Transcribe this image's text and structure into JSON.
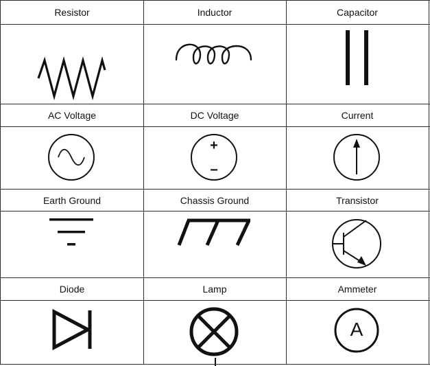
{
  "table": {
    "cells": [
      {
        "label": "Resistor",
        "icon": "resistor-icon"
      },
      {
        "label": "Inductor",
        "icon": "inductor-icon"
      },
      {
        "label": "Capacitor",
        "icon": "capacitor-icon"
      },
      {
        "label": "AC Voltage",
        "icon": "ac-voltage-icon"
      },
      {
        "label": "DC Voltage",
        "icon": "dc-voltage-icon"
      },
      {
        "label": "Current",
        "icon": "current-source-icon"
      },
      {
        "label": "Earth Ground",
        "icon": "earth-ground-icon"
      },
      {
        "label": "Chassis Ground",
        "icon": "chassis-ground-icon"
      },
      {
        "label": "Transistor",
        "icon": "transistor-icon"
      },
      {
        "label": "Diode",
        "icon": "diode-icon"
      },
      {
        "label": "Lamp",
        "icon": "lamp-icon"
      },
      {
        "label": "Ammeter",
        "icon": "ammeter-icon"
      }
    ],
    "dc_plus": "+",
    "dc_minus": "−",
    "ammeter_letter": "A"
  },
  "colors": {
    "ink": "#111111",
    "gridline": "#2a2a2a",
    "background": "#ffffff"
  }
}
